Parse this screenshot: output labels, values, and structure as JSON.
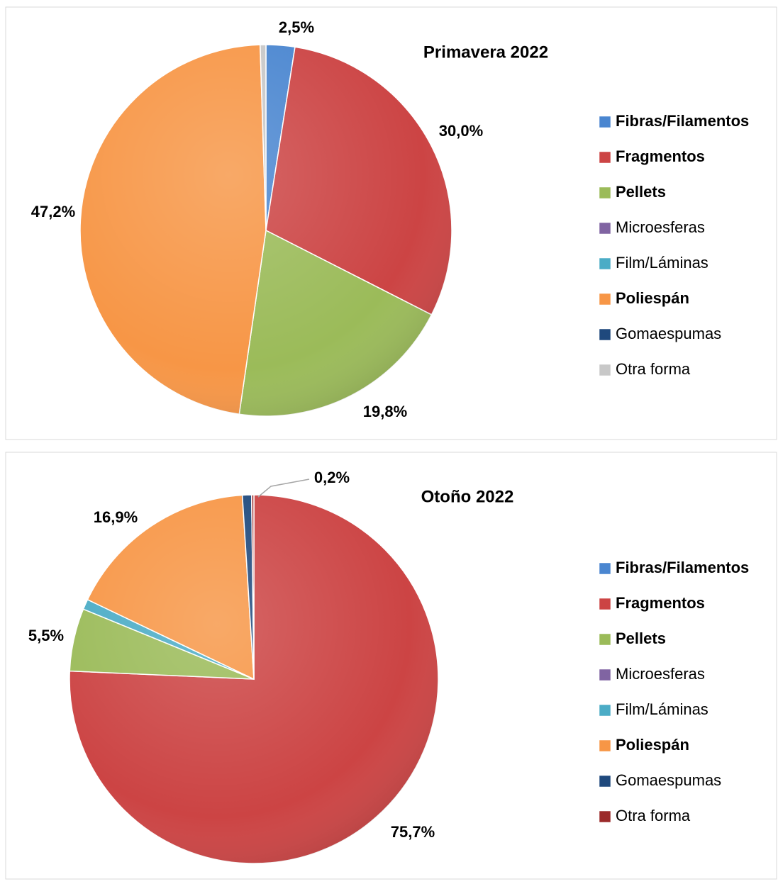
{
  "chart_data": [
    {
      "type": "pie",
      "title": "Primavera 2022",
      "categories": [
        "Fibras/Filamentos",
        "Fragmentos",
        "Pellets",
        "Microesferas",
        "Film/Láminas",
        "Poliespán",
        "Gomaespumas",
        "Otra forma"
      ],
      "values": [
        2.5,
        30.0,
        19.8,
        0,
        0,
        47.2,
        0,
        0.5
      ],
      "value_labels": [
        "2,5%",
        "30,0%",
        "19,8%",
        null,
        null,
        "47,2%",
        null,
        null
      ],
      "colors": [
        "#4a86d0",
        "#cc4444",
        "#9bbb59",
        "#8064a2",
        "#4bacc6",
        "#f79646",
        "#1f497d",
        "#c8c8c8"
      ],
      "legend_bold": [
        true,
        true,
        true,
        false,
        false,
        true,
        false,
        false
      ],
      "legend": "right"
    },
    {
      "type": "pie",
      "title": "Otoño 2022",
      "categories": [
        "Fibras/Filamentos",
        "Fragmentos",
        "Pellets",
        "Microesferas",
        "Film/Láminas",
        "Poliespán",
        "Gomaespumas",
        "Otra forma"
      ],
      "values": [
        0,
        75.7,
        5.5,
        0,
        0.9,
        16.9,
        0.8,
        0.2
      ],
      "value_labels": [
        null,
        "75,7%",
        "5,5%",
        null,
        null,
        "16,9%",
        null,
        "0,2%"
      ],
      "colors": [
        "#4a86d0",
        "#cc4444",
        "#9bbb59",
        "#8064a2",
        "#4bacc6",
        "#f79646",
        "#1f497d",
        "#9b2a2a"
      ],
      "legend_bold": [
        true,
        true,
        true,
        false,
        false,
        true,
        false,
        false
      ],
      "legend": "right"
    }
  ]
}
